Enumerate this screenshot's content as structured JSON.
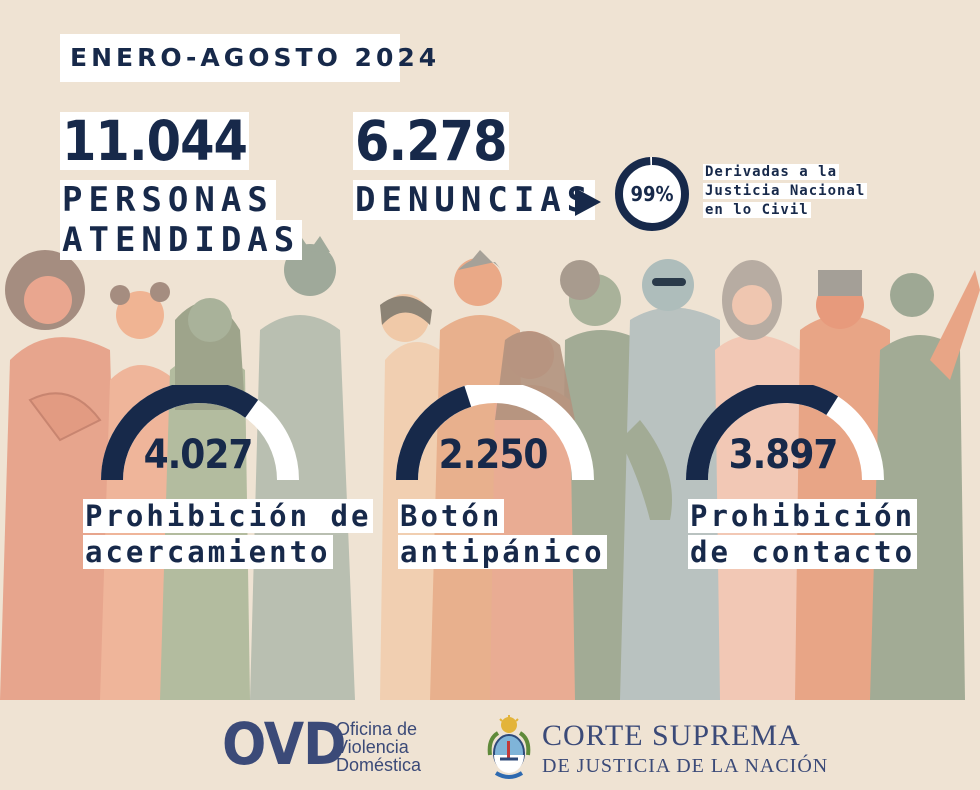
{
  "period": "ENERO-AGOSTO 2024",
  "attended": {
    "value": "11.044",
    "label_line1": "PERSONAS",
    "label_line2": "ATENDIDAS"
  },
  "complaints": {
    "value": "6.278",
    "label": "DENUNCIAS"
  },
  "referral": {
    "percent": "99%",
    "fraction": 0.99,
    "text_line1": "Derivadas a la",
    "text_line2": "Justicia Nacional",
    "text_line3": "en lo Civil"
  },
  "measures": [
    {
      "value": "4.027",
      "label_line1": "Prohibición de",
      "label_line2": "acercamiento",
      "share": 0.35
    },
    {
      "value": "2.250",
      "label_line1": "Botón",
      "label_line2": "antipánico",
      "share": 0.2
    },
    {
      "value": "3.897",
      "label_line1": "Prohibición",
      "label_line2": "de contacto",
      "share": 0.34
    }
  ],
  "footer": {
    "ovd_mark": "OVD",
    "ovd_line1": "Oficina de",
    "ovd_line2": "Violencia",
    "ovd_line3": "Doméstica",
    "court_line1": "CORTE SUPREMA",
    "court_line2": "DE JUSTICIA DE LA NACIÓN"
  },
  "colors": {
    "navy": "#17294a",
    "background": "#efe3d3",
    "gauge_track": "#ffffff",
    "logo_blue": "#3b4a78"
  },
  "icons": [
    "arrow-right-icon",
    "percent-ring-icon",
    "crowd-illustration",
    "coat-of-arms-icon"
  ]
}
